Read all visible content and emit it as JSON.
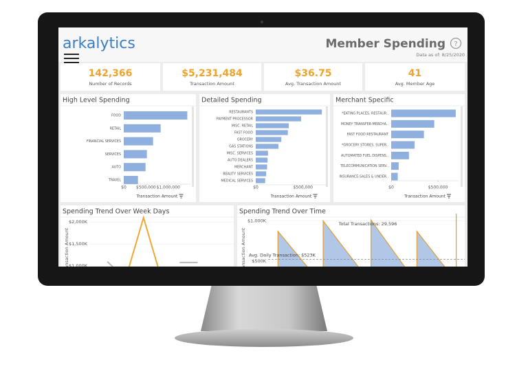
{
  "header": {
    "logo": "arkalytics",
    "title": "Member Spending",
    "date": "Data as of: 8/25/2020"
  },
  "kpis": [
    {
      "value": "142,366",
      "label": "Number of Records"
    },
    {
      "value": "$5,231,484",
      "label": "Transaction Amount"
    },
    {
      "value": "$36.75",
      "label": "Avg. Transaction Amount"
    },
    {
      "value": "41",
      "label": "Avg. Member Age"
    }
  ],
  "chart_data": [
    {
      "type": "hbar",
      "title": "High Level Spending",
      "categories": [
        "FOOD",
        "RETAIL",
        "FINANCIAL SERVICES",
        "SERVICES",
        "AUTO",
        "TRAVEL"
      ],
      "values": [
        1430000,
        830000,
        660000,
        520000,
        490000,
        320000
      ],
      "color": "#8fb0de",
      "xlim": [
        0,
        1500000
      ],
      "xticks": [
        {
          "value": 0,
          "label": "$0"
        },
        {
          "value": 500000,
          "label": "$500,000"
        },
        {
          "value": 1000000,
          "label": "$1,000,000"
        }
      ],
      "xlabel": "Transaction Amount"
    },
    {
      "type": "hbar",
      "title": "Detailed Spending",
      "categories": [
        "RESTAURANTS",
        "PAYMENT PROCESSOR",
        "MISC. RETAIL",
        "FAST FOOD",
        "GROCERY",
        "GAS STATIONS",
        "MISC. SERVICES",
        "AUTO DEALERS",
        "MERCHANT",
        "BEAUTY SERVICES",
        "MEDICAL SERVICES"
      ],
      "values": [
        700000,
        480000,
        350000,
        340000,
        270000,
        240000,
        130000,
        125000,
        120000,
        110000,
        100000
      ],
      "color": "#8fb0de",
      "xlim": [
        0,
        750000
      ],
      "xticks": [
        {
          "value": 0,
          "label": "$0"
        },
        {
          "value": 500000,
          "label": "$500,000"
        }
      ],
      "xlabel": "Transaction Amount"
    },
    {
      "type": "hbar",
      "title": "Merchant Specific",
      "categories": [
        "*EATING PLACES, RESTAUR..",
        "MONEY TRANSFER-MERCHA..",
        "FAST FOOD RESTAURANT",
        "*GROCERY STORES, SUPER..",
        "AUTOMATED FUEL DISPENS..",
        "TELECOMMUNICATION SERV..",
        "INSURANCE-SALES & UNDER.."
      ],
      "values": [
        690000,
        460000,
        350000,
        250000,
        190000,
        80000,
        70000
      ],
      "color": "#8fb0de",
      "xlim": [
        0,
        720000
      ],
      "xticks": [
        {
          "value": 0,
          "label": "$0"
        },
        {
          "value": 500000,
          "label": "$500,000"
        }
      ],
      "xlabel": "Transaction Amount"
    },
    {
      "type": "line",
      "title": "Spending Trend Over Week Days",
      "ylabel": "Transaction Amount",
      "xlim": [
        0,
        8
      ],
      "ylim": [
        800,
        2300
      ],
      "yticks": [
        {
          "value": 1000,
          "label": "$1,000K"
        },
        {
          "value": 1500,
          "label": "$1,500K"
        },
        {
          "value": 2000,
          "label": "$2,000K"
        }
      ],
      "series": [
        {
          "color": "#b9b9b9",
          "x": [
            1,
            2
          ],
          "values": [
            1100,
            700
          ]
        },
        {
          "color": "#b9b9b9",
          "x": [
            5,
            6
          ],
          "values": [
            1080,
            1080
          ]
        },
        {
          "color": "#f0a830",
          "x": [
            2,
            3,
            4
          ],
          "values": [
            700,
            2100,
            700
          ]
        }
      ]
    },
    {
      "type": "area",
      "title": "Spending Trend Over Time",
      "ylabel": "Transaction Amount",
      "annotation": "Total Transactions: 29,596",
      "reference": {
        "value": 523,
        "label": "Avg. Daily Transaction: $523K"
      },
      "xlim": [
        0,
        30
      ],
      "ylim": [
        330,
        1150
      ],
      "yticks": [
        {
          "value": 500,
          "label": "$500K"
        },
        {
          "value": 1000,
          "label": "$1,000K"
        }
      ],
      "color": "#a9c1e4",
      "line_color": "#e0a040",
      "x": [
        1.5,
        1.5,
        7.3,
        8.4,
        8.4,
        14.7,
        15.7,
        15.7,
        21.8,
        22.7,
        22.7,
        27.9,
        28.7,
        28.7
      ],
      "values": [
        300,
        870,
        300,
        300,
        1000,
        330,
        330,
        1010,
        320,
        320,
        870,
        330,
        330,
        1090
      ]
    }
  ]
}
